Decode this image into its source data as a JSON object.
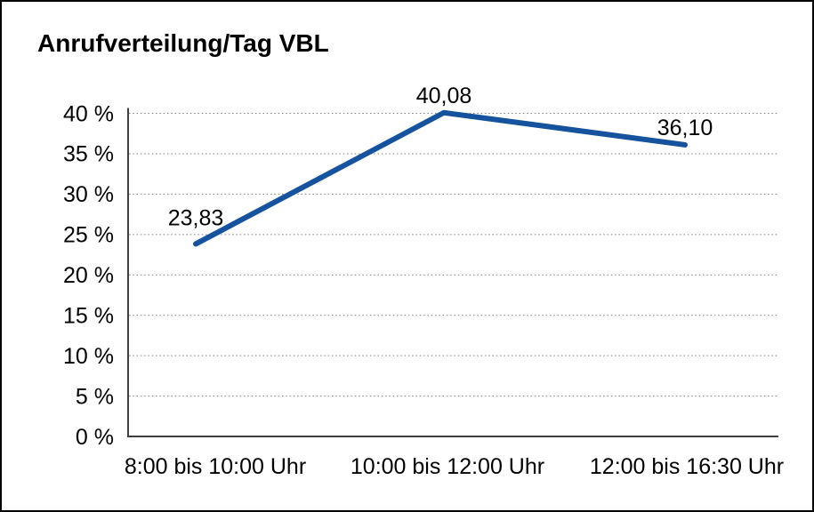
{
  "frame": {
    "background": "#ffffff",
    "border_color": "#000000"
  },
  "chart_data": {
    "type": "line",
    "title": "Anrufverteilung/Tag VBL",
    "categories": [
      "8:00 bis 10:00 Uhr",
      "10:00 bis 12:00 Uhr",
      "12:00 bis 16:30 Uhr"
    ],
    "series": [
      {
        "values": [
          23.83,
          40.08,
          36.1
        ],
        "value_labels": [
          "23,83",
          "40,08",
          "36,10"
        ]
      }
    ],
    "xlabel": "",
    "ylabel": "",
    "ylim": [
      0,
      40
    ],
    "y_tick_step": 5,
    "y_tick_labels": [
      "0 %",
      "5 %",
      "10 %",
      "15 %",
      "20 %",
      "25 %",
      "30 %",
      "35 %",
      "40 %"
    ],
    "grid": "horizontal-dotted",
    "legend": "none",
    "colors": {
      "line": "#15539f",
      "axis": "#3f3f3f",
      "grid": "#7f7f7f",
      "text": "#000000",
      "background": "#ffffff"
    }
  }
}
